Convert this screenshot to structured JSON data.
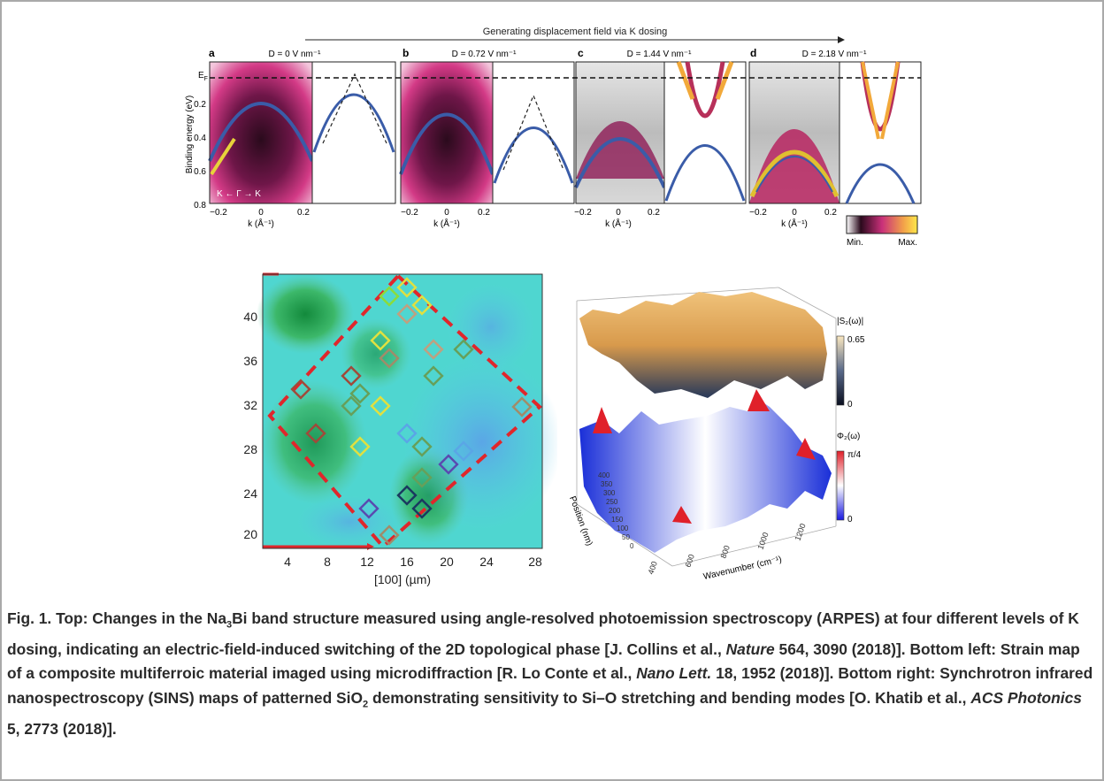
{
  "top_figure": {
    "header": "Generating displacement field via K dosing",
    "panel_letters": [
      "a",
      "b",
      "c",
      "d"
    ],
    "field_labels": [
      "D = 0 V nm⁻¹",
      "D = 0.72 V nm⁻¹",
      "D = 1.44 V nm⁻¹",
      "D = 2.18 V nm⁻¹"
    ],
    "ylabel": "Binding energy (eV)",
    "fermi_label": "E",
    "fermi_sub": "F",
    "y_ticks": [
      "0.2",
      "0.4",
      "0.6",
      "0.8"
    ],
    "x_ticks": [
      "−0.2",
      "0",
      "0.2"
    ],
    "xlabel": "k (Å⁻¹)",
    "inset_label": "K ← Γ → K",
    "colorbar_min": "Min.",
    "colorbar_max": "Max."
  },
  "bottom_left": {
    "x_ticks": [
      "4",
      "8",
      "12",
      "16",
      "20",
      "24",
      "28"
    ],
    "y_ticks": [
      "40",
      "36",
      "32",
      "28",
      "24",
      "20"
    ],
    "xlabel": "[100] (µm)"
  },
  "bottom_right": {
    "cbar1_label": "|S₂(ω)|",
    "cbar1_max": "0.65",
    "cbar1_min": "0",
    "cbar2_label": "Φ₂(ω)",
    "cbar2_max": "π/4",
    "cbar2_min": "0",
    "ylabel": "Position (nm)",
    "y_ticks": [
      "400",
      "350",
      "300",
      "250",
      "200",
      "150",
      "100",
      "50",
      "0"
    ],
    "xlabel": "Wavenumber (cm⁻¹)",
    "x_ticks": [
      "400",
      "600",
      "800",
      "1000",
      "1200"
    ]
  },
  "caption": {
    "p1": "Fig. 1. Top: Changes in the Na",
    "sub1": "3",
    "p2": "Bi band structure measured using angle-resolved photoemission spectroscopy (ARPES) at four different levels of K dosing, indicating an electric-field-induced switching of the 2D topological phase [J. Collins et al., ",
    "j1": "Nature",
    "p3": " 564, 3090 (2018)]. Bottom left: Strain map of a composite multiferroic material imaged using microdiffraction [R. Lo Conte et al., ",
    "j2": "Nano Lett.",
    "p4": " 18, 1952 (2018)]. Bottom right: Synchrotron infrared nanospectroscopy (SINS) maps of patterned SiO",
    "sub2": "2",
    "p5": " demonstrating sensitivity to Si–O stretching and bending modes [O. Khatib et al., ",
    "j3": "ACS Photonics",
    "p6": " 5, 2773 (2018)]."
  }
}
